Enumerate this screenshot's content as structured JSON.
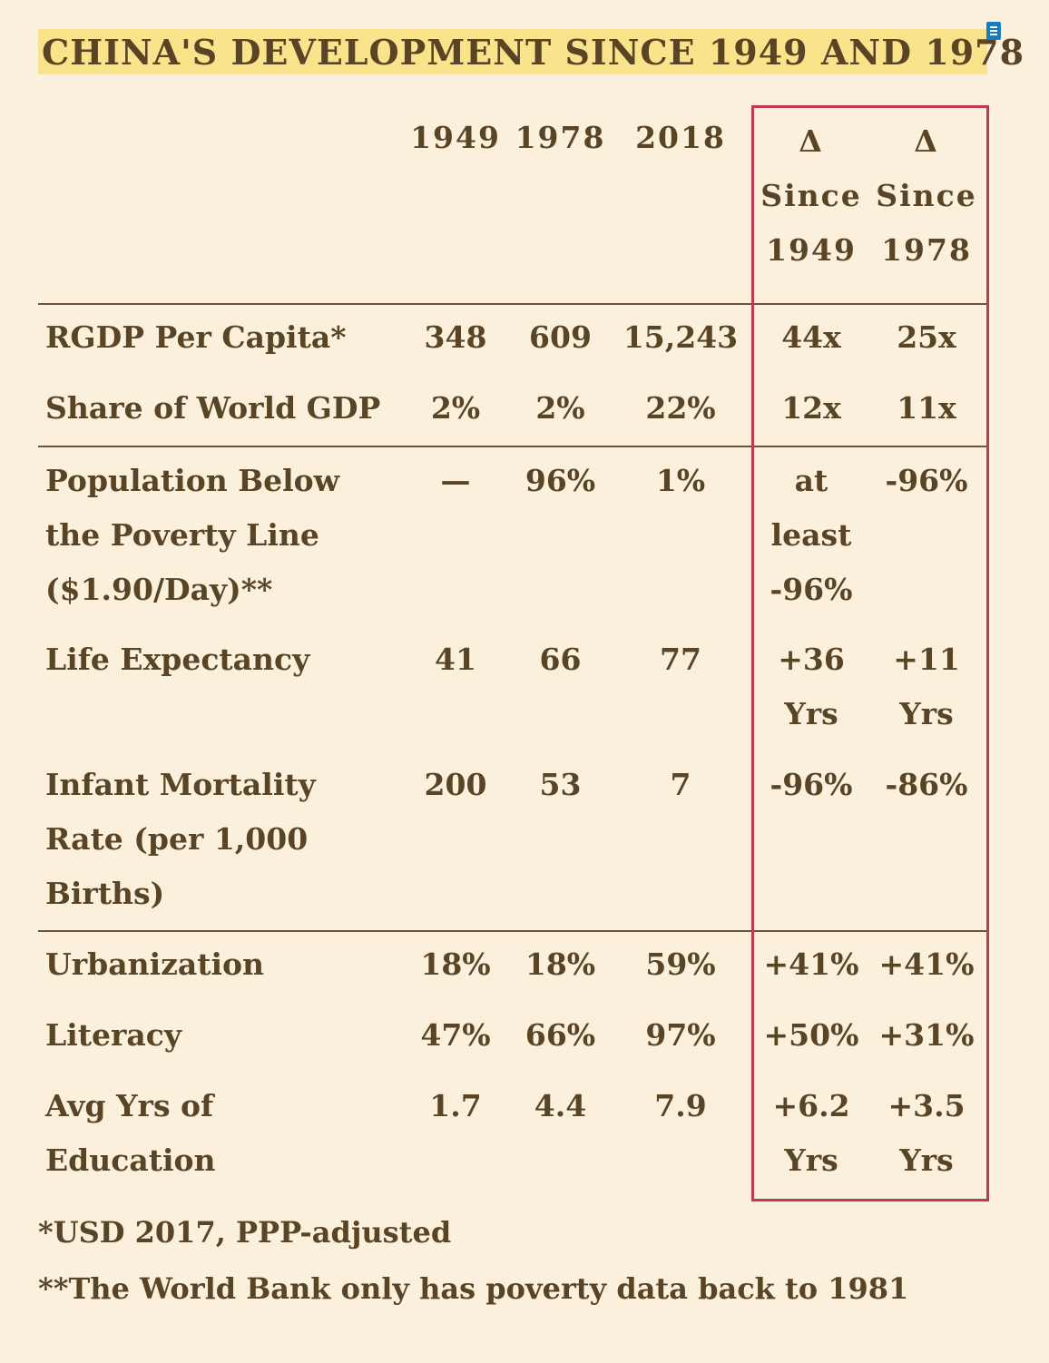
{
  "title": "CHINA'S DEVELOPMENT SINCE 1949 AND 1978",
  "header": {
    "c1949": "1949",
    "c1978": "1978",
    "c2018": "2018",
    "d1949": [
      "Δ",
      "Since",
      "1949"
    ],
    "d1978": [
      "Δ",
      "Since",
      "1978"
    ]
  },
  "rows": [
    {
      "label": "RGDP Per Capita*",
      "v1949": "348",
      "v1978": "609",
      "v2018": "15,243",
      "d1949": "44x",
      "d1978": "25x"
    },
    {
      "label": "Share of World GDP",
      "v1949": "2%",
      "v1978": "2%",
      "v2018": "22%",
      "d1949": "12x",
      "d1978": "11x"
    },
    {
      "label": "Population Below the Poverty Line ($1.90/Day)**",
      "v1949": "—",
      "v1978": "96%",
      "v2018": "1%",
      "d1949": "at least -96%",
      "d1978": "-96%"
    },
    {
      "label": "Life Expectancy",
      "v1949": "41",
      "v1978": "66",
      "v2018": "77",
      "d1949": "+36 Yrs",
      "d1978": "+11 Yrs"
    },
    {
      "label": "Infant Mortality Rate (per 1,000 Births)",
      "v1949": "200",
      "v1978": "53",
      "v2018": "7",
      "d1949": "-96%",
      "d1978": "-86%"
    },
    {
      "label": "Urbanization",
      "v1949": "18%",
      "v1978": "18%",
      "v2018": "59%",
      "d1949": "+41%",
      "d1978": "+41%"
    },
    {
      "label": "Literacy",
      "v1949": "47%",
      "v1978": "66%",
      "v2018": "97%",
      "d1949": "+50%",
      "d1978": "+31%"
    },
    {
      "label": "Avg Yrs of Education",
      "v1949": "1.7",
      "v1978": "4.4",
      "v2018": "7.9",
      "d1949": "+6.2 Yrs",
      "d1978": "+3.5 Yrs"
    }
  ],
  "footnotes": [
    "*USD 2017, PPP-adjusted",
    "**The World Bank only has poverty data back to 1981"
  ],
  "colors": {
    "background": "#faf0dc",
    "text": "#5a4426",
    "title_highlight": "#f9e48c",
    "delta_box_border": "#c23a4e",
    "icon": "#1a7bbf"
  },
  "icons": [
    "document-icon"
  ]
}
